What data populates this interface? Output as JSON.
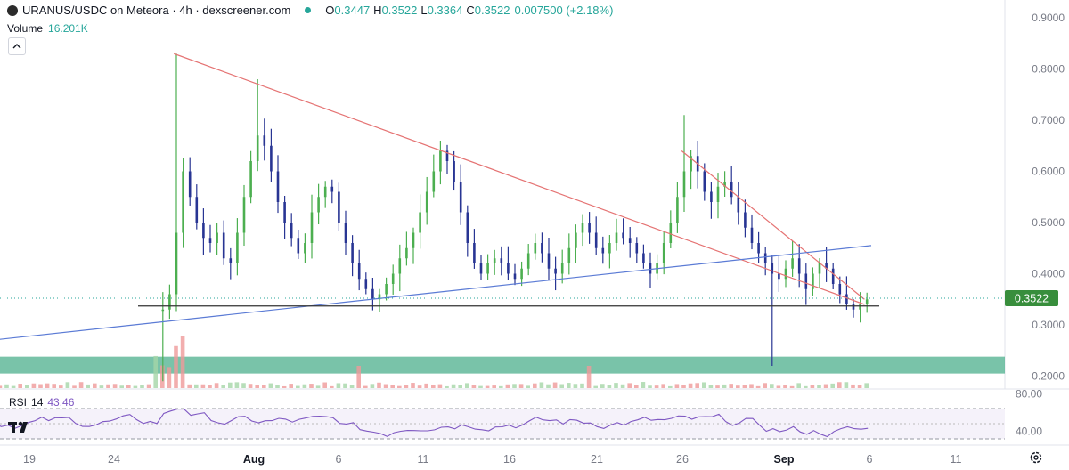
{
  "header": {
    "symbol": "URANUS/USDC on Meteora · 4h · dexscreener.com",
    "o_label": "O",
    "o_value": "0.3447",
    "h_label": "H",
    "h_value": "0.3522",
    "l_label": "L",
    "l_value": "0.3364",
    "c_label": "C",
    "c_value": "0.3522",
    "change": "0.007500 (+2.18%)"
  },
  "volume": {
    "label": "Volume",
    "value": "16.201K"
  },
  "rsi": {
    "label": "RSI",
    "period": "14",
    "value": "43.46"
  },
  "colors": {
    "up": "#26a69a",
    "down": "#3f51b5",
    "bull_candle": "#4caf50",
    "bear_candle": "#283593",
    "trend_red": "#e57373",
    "trend_blue": "#5b7bd5",
    "zone": "#4caf8c",
    "rsi_line": "#7e57c2"
  },
  "chart_data": {
    "type": "candlestick",
    "price_axis": {
      "ticks": [
        "0.9000",
        "0.8000",
        "0.7000",
        "0.6000",
        "0.5000",
        "0.4000",
        "0.3000",
        "0.2000"
      ],
      "ylim": [
        0.18,
        0.93
      ]
    },
    "last_price_label": "0.3522",
    "time_axis": {
      "ticks": [
        "19",
        "24",
        "Aug",
        "6",
        "11",
        "16",
        "21",
        "26",
        "Sep",
        "6",
        "11"
      ]
    },
    "rsi_axis": {
      "ticks": [
        "80.00",
        "40.00"
      ],
      "overbought": 70,
      "oversold": 30
    },
    "close_path": [
      [
        25,
        0.33
      ],
      [
        26,
        0.36
      ],
      [
        27,
        0.48
      ],
      [
        28,
        0.6
      ],
      [
        29,
        0.55
      ],
      [
        30,
        0.5
      ],
      [
        31,
        0.47
      ],
      [
        32,
        0.46
      ],
      [
        33,
        0.48
      ],
      [
        34,
        0.43
      ],
      [
        35,
        0.42
      ],
      [
        36,
        0.48
      ],
      [
        37,
        0.55
      ],
      [
        38,
        0.62
      ],
      [
        39,
        0.67
      ],
      [
        40,
        0.65
      ],
      [
        41,
        0.6
      ],
      [
        42,
        0.54
      ],
      [
        43,
        0.5
      ],
      [
        44,
        0.47
      ],
      [
        45,
        0.44
      ],
      [
        46,
        0.46
      ],
      [
        47,
        0.52
      ],
      [
        48,
        0.55
      ],
      [
        49,
        0.57
      ],
      [
        50,
        0.56
      ],
      [
        51,
        0.5
      ],
      [
        52,
        0.46
      ],
      [
        53,
        0.42
      ],
      [
        54,
        0.39
      ],
      [
        55,
        0.37
      ],
      [
        56,
        0.35
      ],
      [
        57,
        0.36
      ],
      [
        58,
        0.38
      ],
      [
        59,
        0.4
      ],
      [
        60,
        0.43
      ],
      [
        61,
        0.45
      ],
      [
        62,
        0.48
      ],
      [
        63,
        0.52
      ],
      [
        64,
        0.56
      ],
      [
        65,
        0.6
      ],
      [
        66,
        0.64
      ],
      [
        67,
        0.62
      ],
      [
        68,
        0.58
      ],
      [
        69,
        0.52
      ],
      [
        70,
        0.46
      ],
      [
        71,
        0.42
      ],
      [
        72,
        0.4
      ],
      [
        73,
        0.42
      ],
      [
        74,
        0.43
      ],
      [
        75,
        0.42
      ],
      [
        76,
        0.4
      ],
      [
        77,
        0.39
      ],
      [
        78,
        0.41
      ],
      [
        79,
        0.44
      ],
      [
        80,
        0.46
      ],
      [
        81,
        0.44
      ],
      [
        82,
        0.41
      ],
      [
        83,
        0.4
      ],
      [
        84,
        0.42
      ],
      [
        85,
        0.45
      ],
      [
        86,
        0.48
      ],
      [
        87,
        0.5
      ],
      [
        88,
        0.48
      ],
      [
        89,
        0.45
      ],
      [
        90,
        0.44
      ],
      [
        91,
        0.46
      ],
      [
        92,
        0.48
      ],
      [
        93,
        0.47
      ],
      [
        94,
        0.46
      ],
      [
        95,
        0.44
      ],
      [
        96,
        0.42
      ],
      [
        97,
        0.4
      ],
      [
        98,
        0.42
      ],
      [
        99,
        0.46
      ],
      [
        100,
        0.5
      ],
      [
        101,
        0.55
      ],
      [
        102,
        0.6
      ],
      [
        103,
        0.63
      ],
      [
        104,
        0.6
      ],
      [
        105,
        0.56
      ],
      [
        106,
        0.54
      ],
      [
        107,
        0.57
      ],
      [
        108,
        0.58
      ],
      [
        109,
        0.55
      ],
      [
        110,
        0.52
      ],
      [
        111,
        0.49
      ],
      [
        112,
        0.46
      ],
      [
        113,
        0.44
      ],
      [
        114,
        0.42
      ],
      [
        115,
        0.4
      ],
      [
        116,
        0.39
      ],
      [
        117,
        0.41
      ],
      [
        118,
        0.43
      ],
      [
        119,
        0.4
      ],
      [
        120,
        0.37
      ],
      [
        121,
        0.4
      ],
      [
        122,
        0.42
      ],
      [
        123,
        0.41
      ],
      [
        124,
        0.38
      ],
      [
        125,
        0.36
      ],
      [
        126,
        0.34
      ],
      [
        127,
        0.33
      ],
      [
        128,
        0.34
      ],
      [
        129,
        0.35
      ]
    ],
    "wick_extremes": [
      {
        "x": 27,
        "high": 0.83
      },
      {
        "x": 39,
        "high": 0.78
      },
      {
        "x": 66,
        "high": 0.66
      },
      {
        "x": 102,
        "high": 0.71
      },
      {
        "x": 115,
        "low": 0.22
      },
      {
        "x": 25,
        "low": 0.19
      }
    ],
    "drawings": {
      "red_trendline_1": {
        "from": [
          27,
          0.83
        ],
        "to": [
          129,
          0.34
        ]
      },
      "red_trendline_2": {
        "from": [
          102,
          0.64
        ],
        "to": [
          129,
          0.35
        ]
      },
      "blue_trendline": {
        "from": [
          0,
          0.27
        ],
        "to": [
          130,
          0.455
        ]
      },
      "black_support": {
        "value": 0.337
      },
      "green_zone": {
        "low": 0.205,
        "high": 0.238
      }
    }
  }
}
